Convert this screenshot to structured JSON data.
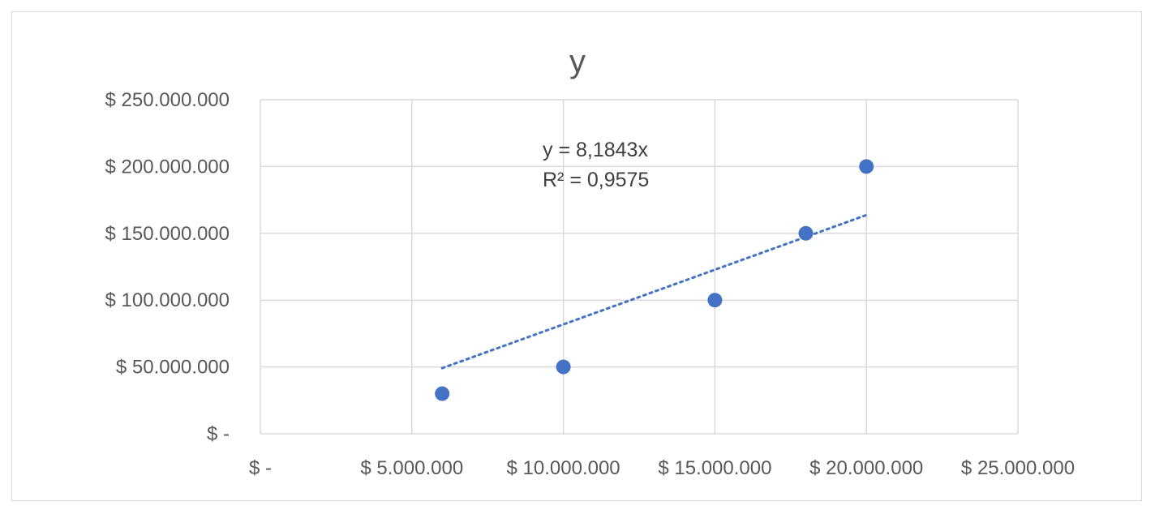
{
  "chart_data": {
    "type": "scatter",
    "title": "y",
    "xlabel": "",
    "ylabel": "",
    "xlim": [
      0,
      25000000
    ],
    "ylim": [
      0,
      250000000
    ],
    "x_ticks": [
      {
        "value": 0,
        "label": "$ -"
      },
      {
        "value": 5000000,
        "label": "$ 5.000.000"
      },
      {
        "value": 10000000,
        "label": "$ 10.000.000"
      },
      {
        "value": 15000000,
        "label": "$ 15.000.000"
      },
      {
        "value": 20000000,
        "label": "$ 20.000.000"
      },
      {
        "value": 25000000,
        "label": "$ 25.000.000"
      }
    ],
    "y_ticks": [
      {
        "value": 0,
        "label": "$ -"
      },
      {
        "value": 50000000,
        "label": "$ 50.000.000"
      },
      {
        "value": 100000000,
        "label": "$ 100.000.000"
      },
      {
        "value": 150000000,
        "label": "$ 150.000.000"
      },
      {
        "value": 200000000,
        "label": "$ 200.000.000"
      },
      {
        "value": 250000000,
        "label": "$ 250.000.000"
      }
    ],
    "grid": true,
    "series": [
      {
        "x": [
          6000000,
          10000000,
          15000000,
          18000000,
          20000000
        ],
        "y": [
          30000000,
          50000000,
          100000000,
          150000000,
          200000000
        ],
        "color": "#4472c4"
      }
    ],
    "trendline": {
      "slope": 8.1843,
      "x_range": [
        6000000,
        20000000
      ],
      "style": "dotted",
      "color": "#4472c4",
      "equation_label": "y = 8,1843x",
      "r2_label": "R² = 0,9575"
    },
    "colors": {
      "grid": "#d9d9d9",
      "text": "#595959"
    }
  }
}
